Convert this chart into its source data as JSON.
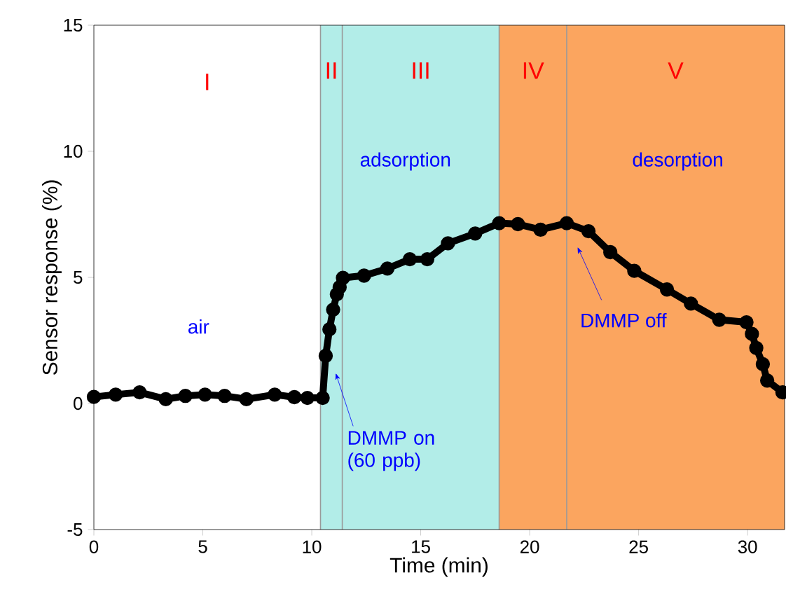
{
  "chart_data": {
    "type": "line",
    "xlabel": "Time (min)",
    "ylabel": "Sensor response (%)",
    "xlim": [
      0,
      31.7
    ],
    "ylim": [
      -5,
      15
    ],
    "xticks": [
      0,
      5,
      10,
      15,
      20,
      25,
      30
    ],
    "yticks": [
      -5,
      0,
      5,
      10,
      15
    ],
    "marker": "circle",
    "bands": [
      {
        "axis": "x",
        "from": 10.4,
        "to": 11.4,
        "label": "II",
        "color": "#b2ede8"
      },
      {
        "axis": "x",
        "from": 11.4,
        "to": 18.6,
        "label": "III",
        "color": "#b2ede8"
      },
      {
        "axis": "x",
        "from": 18.6,
        "to": 21.7,
        "label": "IV",
        "color": "#fba55f"
      },
      {
        "axis": "x",
        "from": 21.7,
        "to": 31.7,
        "label": "V",
        "color": "#fba55f"
      }
    ],
    "annotations": [
      "I",
      "air",
      "adsorption",
      "desorption",
      {
        "text": "DMMP on (60 ppb)",
        "x": 11.1,
        "y": 1.2
      },
      "DMMP off"
    ],
    "series": [
      {
        "color": "#000000",
        "x": [
          0,
          1,
          2.1,
          3.3,
          4.2,
          5.1,
          6.0,
          7.0,
          8.3,
          9.2,
          9.8,
          10.5,
          10.64,
          10.81,
          10.98,
          11.15,
          11.28,
          11.43,
          12.4,
          13.47,
          14.5,
          15.3,
          16.25,
          17.5,
          18.6,
          19.46,
          20.5,
          21.7,
          22.7,
          23.7,
          24.8,
          26.3,
          27.4,
          28.7,
          29.95,
          30.2,
          30.4,
          30.7,
          30.9,
          31.6
        ],
        "values": [
          0.26,
          0.35,
          0.44,
          0.17,
          0.3,
          0.35,
          0.3,
          0.17,
          0.35,
          0.25,
          0.22,
          0.22,
          1.89,
          2.94,
          3.72,
          4.33,
          4.61,
          4.98,
          5.07,
          5.35,
          5.72,
          5.72,
          6.35,
          6.74,
          7.15,
          7.11,
          6.89,
          7.15,
          6.83,
          6.0,
          5.26,
          4.52,
          3.96,
          3.32,
          3.22,
          2.76,
          2.2,
          1.56,
          0.91,
          0.44
        ]
      }
    ]
  }
}
